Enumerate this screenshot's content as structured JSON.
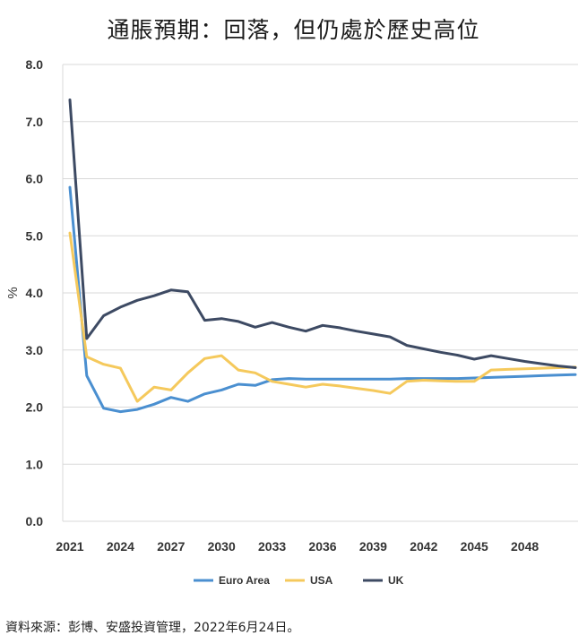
{
  "title": "通脹預期：回落，但仍處於歷史高位",
  "source": "資料來源：彭博、安盛投資管理，2022年6月24日。",
  "chart_data": {
    "type": "line",
    "title": "通脹預期：回落，但仍處於歷史高位",
    "xlabel": "",
    "ylabel": "%",
    "xlim": [
      2021,
      2051
    ],
    "ylim": [
      0,
      8
    ],
    "x_ticks": [
      "2021",
      "2024",
      "2027",
      "2030",
      "2033",
      "2036",
      "2039",
      "2042",
      "2045",
      "2048"
    ],
    "y_ticks": [
      "0.0",
      "1.0",
      "2.0",
      "3.0",
      "4.0",
      "5.0",
      "6.0",
      "7.0",
      "8.0"
    ],
    "grid": true,
    "legend_position": "bottom",
    "x": [
      2021,
      2022,
      2023,
      2024,
      2025,
      2026,
      2027,
      2028,
      2029,
      2030,
      2031,
      2032,
      2033,
      2034,
      2035,
      2036,
      2037,
      2038,
      2039,
      2040,
      2041,
      2042,
      2043,
      2044,
      2045,
      2046,
      2047,
      2048,
      2049,
      2050,
      2051
    ],
    "series": [
      {
        "name": "Euro Area",
        "color": "#4a8fd0",
        "values": [
          5.85,
          2.55,
          1.98,
          1.92,
          1.96,
          2.05,
          2.17,
          2.1,
          2.23,
          2.3,
          2.4,
          2.38,
          2.48,
          2.5,
          2.49,
          2.49,
          2.49,
          2.49,
          2.49,
          2.49,
          2.5,
          2.5,
          2.5,
          2.5,
          2.51,
          2.52,
          2.53,
          2.54,
          2.55,
          2.56,
          2.57
        ]
      },
      {
        "name": "USA",
        "color": "#f5c95c",
        "values": [
          5.05,
          2.88,
          2.75,
          2.68,
          2.1,
          2.35,
          2.3,
          2.6,
          2.85,
          2.9,
          2.65,
          2.6,
          2.45,
          2.4,
          2.35,
          2.4,
          2.37,
          2.33,
          2.29,
          2.24,
          2.45,
          2.47,
          2.46,
          2.45,
          2.45,
          2.65,
          2.66,
          2.67,
          2.68,
          2.69,
          2.7
        ]
      },
      {
        "name": "UK",
        "color": "#3d4a63",
        "values": [
          7.38,
          3.2,
          3.6,
          3.75,
          3.87,
          3.95,
          4.05,
          4.02,
          3.52,
          3.55,
          3.5,
          3.4,
          3.48,
          3.4,
          3.33,
          3.43,
          3.39,
          3.33,
          3.28,
          3.23,
          3.08,
          3.02,
          2.96,
          2.91,
          2.84,
          2.9,
          2.85,
          2.8,
          2.76,
          2.72,
          2.69
        ]
      }
    ]
  }
}
